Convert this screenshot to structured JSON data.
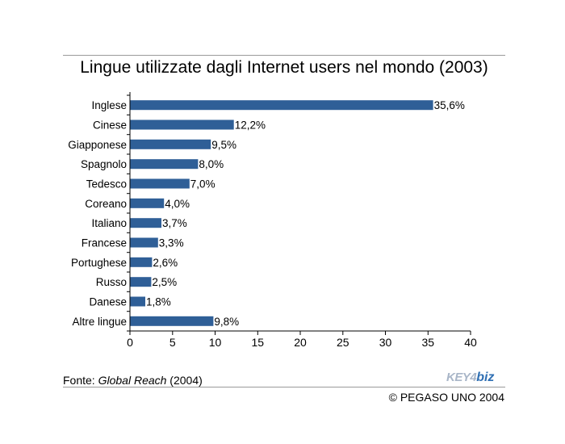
{
  "title": "Lingue utilizzate dagli Internet users nel mondo (2003)",
  "source": {
    "prefix": "Fonte: ",
    "name": "Global Reach",
    "suffix": " (2004)"
  },
  "logo": {
    "text_a": "KEY4",
    "text_b": "biz"
  },
  "copyright": "© PEGASO UNO 2004",
  "colors": {
    "bar": "#2f5f97",
    "axis": "#000000",
    "rule": "#9a9a9a"
  },
  "chart_data": {
    "type": "bar",
    "orientation": "horizontal",
    "title": "Lingue utilizzate dagli Internet users nel mondo (2003)",
    "categories": [
      "Inglese",
      "Cinese",
      "Giapponese",
      "Spagnolo",
      "Tedesco",
      "Coreano",
      "Italiano",
      "Francese",
      "Portughese",
      "Russo",
      "Danese",
      "Altre lingue"
    ],
    "values": [
      35.6,
      12.2,
      9.5,
      8.0,
      7.0,
      4.0,
      3.7,
      3.3,
      2.6,
      2.5,
      1.8,
      9.8
    ],
    "value_labels": [
      "35,6%",
      "12,2%",
      "9,5%",
      "8,0%",
      "7,0%",
      "4,0%",
      "3,7%",
      "3,3%",
      "2,6%",
      "2,5%",
      "1,8%",
      "9,8%"
    ],
    "xlim": [
      0,
      40
    ],
    "xticks": [
      "0",
      "5",
      "10",
      "15",
      "20",
      "25",
      "30",
      "35",
      "40"
    ],
    "xlabel": "",
    "ylabel": "",
    "grid": false,
    "legend": false
  }
}
